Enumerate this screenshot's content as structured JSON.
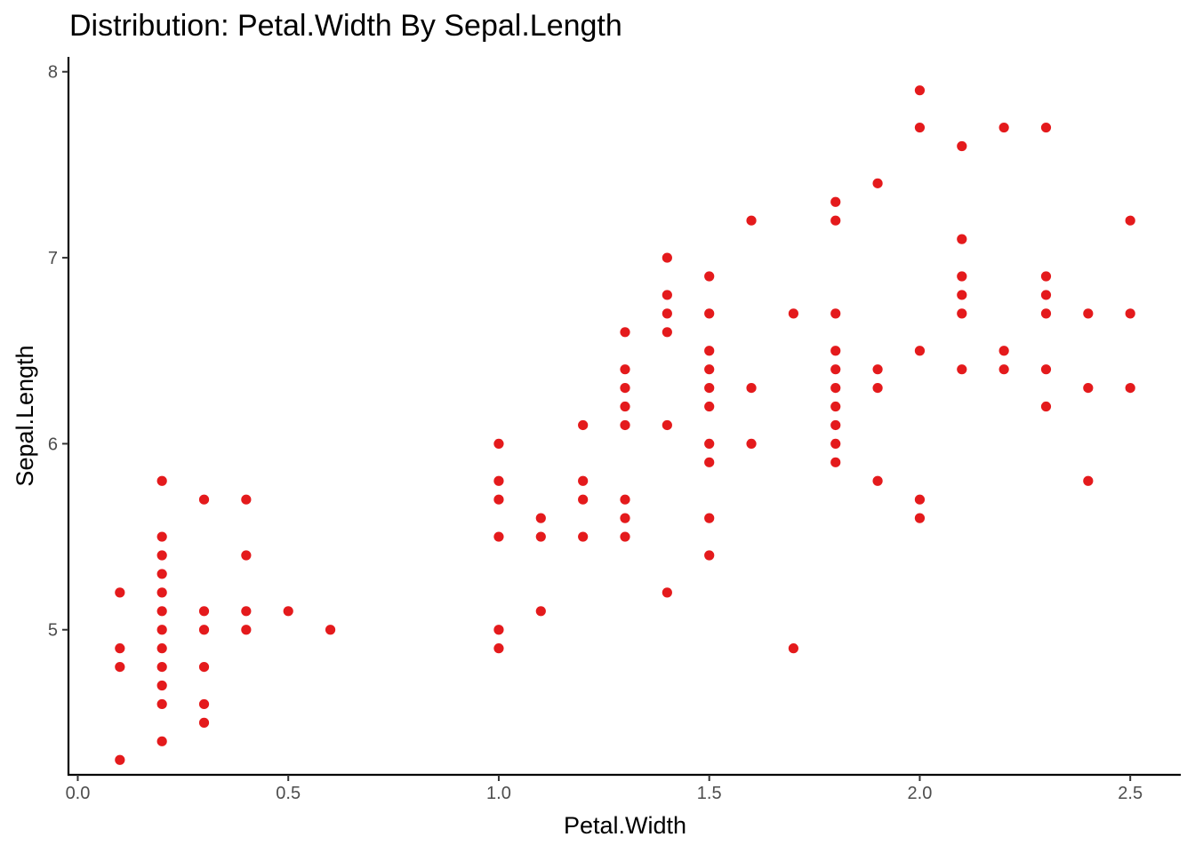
{
  "chart_data": {
    "type": "scatter",
    "title": "Distribution: Petal.Width By Sepal.Length",
    "xlabel": "Petal.Width",
    "ylabel": "Sepal.Length",
    "xlim": [
      -0.02,
      2.62
    ],
    "ylim": [
      4.22,
      8.08
    ],
    "x_ticks": [
      0.0,
      0.5,
      1.0,
      1.5,
      2.0,
      2.5
    ],
    "x_tick_labels": [
      "0.0",
      "0.5",
      "1.0",
      "1.5",
      "2.0",
      "2.5"
    ],
    "y_ticks": [
      5,
      6,
      7,
      8
    ],
    "y_tick_labels": [
      "5",
      "6",
      "7",
      "8"
    ],
    "grid": false,
    "legend": "none",
    "point_color": "#E41A1C",
    "points": [
      [
        0.1,
        5.2
      ],
      [
        0.1,
        4.9
      ],
      [
        0.1,
        4.8
      ],
      [
        0.1,
        4.3
      ],
      [
        0.2,
        5.8
      ],
      [
        0.2,
        5.5
      ],
      [
        0.2,
        5.4
      ],
      [
        0.2,
        5.3
      ],
      [
        0.2,
        5.2
      ],
      [
        0.2,
        5.1
      ],
      [
        0.2,
        5.0
      ],
      [
        0.2,
        4.9
      ],
      [
        0.2,
        4.8
      ],
      [
        0.2,
        4.7
      ],
      [
        0.2,
        4.6
      ],
      [
        0.2,
        4.4
      ],
      [
        0.3,
        5.7
      ],
      [
        0.3,
        5.1
      ],
      [
        0.3,
        5.0
      ],
      [
        0.3,
        4.8
      ],
      [
        0.3,
        4.6
      ],
      [
        0.3,
        4.5
      ],
      [
        0.4,
        5.7
      ],
      [
        0.4,
        5.4
      ],
      [
        0.4,
        5.1
      ],
      [
        0.4,
        5.0
      ],
      [
        0.5,
        5.1
      ],
      [
        0.6,
        5.0
      ],
      [
        1.0,
        6.0
      ],
      [
        1.0,
        5.8
      ],
      [
        1.0,
        5.7
      ],
      [
        1.0,
        5.5
      ],
      [
        1.0,
        5.0
      ],
      [
        1.0,
        4.9
      ],
      [
        1.1,
        5.6
      ],
      [
        1.1,
        5.5
      ],
      [
        1.1,
        5.1
      ],
      [
        1.2,
        6.1
      ],
      [
        1.2,
        5.8
      ],
      [
        1.2,
        5.7
      ],
      [
        1.2,
        5.5
      ],
      [
        1.3,
        6.6
      ],
      [
        1.3,
        6.4
      ],
      [
        1.3,
        6.3
      ],
      [
        1.3,
        6.2
      ],
      [
        1.3,
        6.1
      ],
      [
        1.3,
        5.7
      ],
      [
        1.3,
        5.6
      ],
      [
        1.3,
        5.5
      ],
      [
        1.4,
        7.0
      ],
      [
        1.4,
        6.8
      ],
      [
        1.4,
        6.7
      ],
      [
        1.4,
        6.6
      ],
      [
        1.4,
        6.1
      ],
      [
        1.4,
        5.2
      ],
      [
        1.5,
        6.9
      ],
      [
        1.5,
        6.7
      ],
      [
        1.5,
        6.5
      ],
      [
        1.5,
        6.4
      ],
      [
        1.5,
        6.3
      ],
      [
        1.5,
        6.2
      ],
      [
        1.5,
        6.0
      ],
      [
        1.5,
        5.9
      ],
      [
        1.5,
        5.6
      ],
      [
        1.5,
        5.4
      ],
      [
        1.6,
        7.2
      ],
      [
        1.6,
        6.3
      ],
      [
        1.6,
        6.0
      ],
      [
        1.7,
        6.7
      ],
      [
        1.7,
        4.9
      ],
      [
        1.8,
        7.3
      ],
      [
        1.8,
        7.2
      ],
      [
        1.8,
        6.7
      ],
      [
        1.8,
        6.5
      ],
      [
        1.8,
        6.4
      ],
      [
        1.8,
        6.3
      ],
      [
        1.8,
        6.2
      ],
      [
        1.8,
        6.1
      ],
      [
        1.8,
        6.0
      ],
      [
        1.8,
        5.9
      ],
      [
        1.9,
        7.4
      ],
      [
        1.9,
        6.4
      ],
      [
        1.9,
        6.3
      ],
      [
        1.9,
        5.8
      ],
      [
        2.0,
        7.9
      ],
      [
        2.0,
        7.7
      ],
      [
        2.0,
        6.5
      ],
      [
        2.0,
        5.7
      ],
      [
        2.0,
        5.6
      ],
      [
        2.1,
        7.6
      ],
      [
        2.1,
        7.1
      ],
      [
        2.1,
        6.9
      ],
      [
        2.1,
        6.8
      ],
      [
        2.1,
        6.7
      ],
      [
        2.1,
        6.4
      ],
      [
        2.2,
        7.7
      ],
      [
        2.2,
        6.5
      ],
      [
        2.2,
        6.4
      ],
      [
        2.3,
        7.7
      ],
      [
        2.3,
        6.9
      ],
      [
        2.3,
        6.8
      ],
      [
        2.3,
        6.7
      ],
      [
        2.3,
        6.4
      ],
      [
        2.3,
        6.2
      ],
      [
        2.4,
        6.7
      ],
      [
        2.4,
        6.3
      ],
      [
        2.4,
        5.8
      ],
      [
        2.5,
        7.2
      ],
      [
        2.5,
        6.7
      ],
      [
        2.5,
        6.3
      ]
    ]
  }
}
